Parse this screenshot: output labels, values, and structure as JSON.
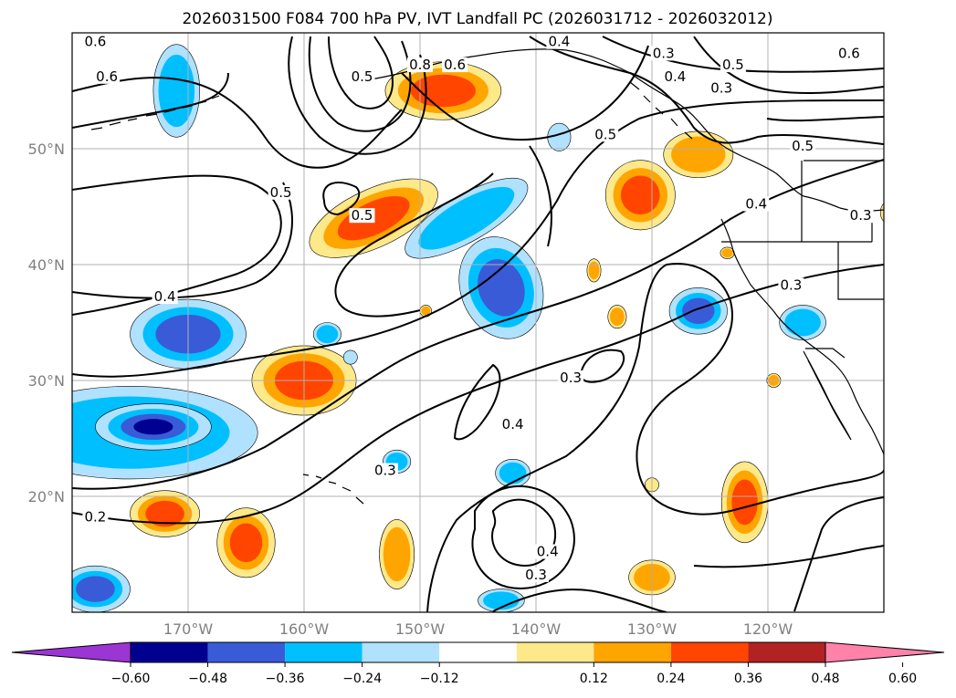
{
  "title": "2026031500 F084 700 hPa PV, IVT Landfall PC (2026031712 - 2026032012)",
  "map": {
    "lon_range": [
      -180,
      -110
    ],
    "lat_range": [
      10,
      60
    ],
    "lon_ticks": [
      {
        "lon": -170,
        "label": "170°W"
      },
      {
        "lon": -160,
        "label": "160°W"
      },
      {
        "lon": -150,
        "label": "150°W"
      },
      {
        "lon": -140,
        "label": "140°W"
      },
      {
        "lon": -130,
        "label": "130°W"
      },
      {
        "lon": -120,
        "label": "120°W"
      }
    ],
    "lat_ticks": [
      {
        "lat": 20,
        "label": "20°N"
      },
      {
        "lat": 30,
        "label": "30°N"
      },
      {
        "lat": 40,
        "label": "40°N"
      },
      {
        "lat": 50,
        "label": "50°N"
      }
    ],
    "grid": true,
    "background_color": "#ffffff",
    "contour_color": "#000000",
    "contour_labels": [
      {
        "text": "0.6",
        "lon": -178,
        "lat": 59
      },
      {
        "text": "0.6",
        "lon": -177,
        "lat": 56
      },
      {
        "text": "0.5",
        "lon": -155,
        "lat": 56
      },
      {
        "text": "0.8",
        "lon": -150,
        "lat": 57
      },
      {
        "text": "0.6",
        "lon": -147,
        "lat": 57
      },
      {
        "text": "0.4",
        "lon": -138,
        "lat": 59
      },
      {
        "text": "0.3",
        "lon": -129,
        "lat": 58
      },
      {
        "text": "0.5",
        "lon": -123,
        "lat": 57
      },
      {
        "text": "0.4",
        "lon": -128,
        "lat": 56
      },
      {
        "text": "0.3",
        "lon": -124,
        "lat": 55
      },
      {
        "text": "0.6",
        "lon": -113,
        "lat": 58
      },
      {
        "text": "0.5",
        "lon": -134,
        "lat": 51
      },
      {
        "text": "0.5",
        "lon": -117,
        "lat": 50
      },
      {
        "text": "0.5",
        "lon": -162,
        "lat": 46
      },
      {
        "text": "0.5",
        "lon": -155,
        "lat": 44
      },
      {
        "text": "0.4",
        "lon": -121,
        "lat": 45
      },
      {
        "text": "0.3",
        "lon": -112,
        "lat": 44
      },
      {
        "text": "0.3",
        "lon": -118,
        "lat": 38
      },
      {
        "text": "0.4",
        "lon": -172,
        "lat": 37
      },
      {
        "text": "0.3",
        "lon": -137,
        "lat": 30
      },
      {
        "text": "0.4",
        "lon": -142,
        "lat": 26
      },
      {
        "text": "0.3",
        "lon": -153,
        "lat": 22
      },
      {
        "text": "0.2",
        "lon": -178,
        "lat": 18
      },
      {
        "text": "0.4",
        "lon": -139,
        "lat": 15
      },
      {
        "text": "0.3",
        "lon": -140,
        "lat": 13
      }
    ]
  },
  "colorbar": {
    "ticks": [
      "−0.60",
      "−0.48",
      "−0.36",
      "−0.24",
      "−0.12",
      "0.12",
      "0.24",
      "0.36",
      "0.48",
      "0.60"
    ],
    "bins": [
      {
        "color": "#9b35d3",
        "role": "under"
      },
      {
        "color": "#000090"
      },
      {
        "color": "#3a5bd8"
      },
      {
        "color": "#00bfff"
      },
      {
        "color": "#b0e2ff"
      },
      {
        "color": "#ffffff"
      },
      {
        "color": "#fee98a"
      },
      {
        "color": "#ffa500"
      },
      {
        "color": "#ff4500"
      },
      {
        "color": "#b22222"
      },
      {
        "color": "#ff82ab",
        "role": "over"
      }
    ]
  },
  "blobs": [
    {
      "lon": -175,
      "lat": 25.5,
      "rx": 11,
      "ry": 4,
      "lv": -2
    },
    {
      "lon": -173,
      "lat": 26,
      "rx": 5,
      "ry": 2,
      "lv": -4
    },
    {
      "lon": -170,
      "lat": 34,
      "rx": 5,
      "ry": 3,
      "lv": -3
    },
    {
      "lon": -178,
      "lat": 12,
      "rx": 3,
      "ry": 2,
      "lv": -3
    },
    {
      "lon": -160,
      "lat": 30,
      "rx": 4.5,
      "ry": 3,
      "lv": 3
    },
    {
      "lon": -172,
      "lat": 18.5,
      "rx": 3,
      "ry": 2,
      "lv": 3
    },
    {
      "lon": -165,
      "lat": 16,
      "rx": 2.5,
      "ry": 3,
      "lv": 3
    },
    {
      "lon": -152,
      "lat": 15,
      "rx": 1.5,
      "ry": 3,
      "lv": 2
    },
    {
      "lon": -154,
      "lat": 44,
      "rx": 6,
      "ry": 2.5,
      "lv": 3,
      "rot": -25
    },
    {
      "lon": -146,
      "lat": 44,
      "rx": 6,
      "ry": 2,
      "lv": -2,
      "rot": -30
    },
    {
      "lon": -143,
      "lat": 38,
      "rx": 3.5,
      "ry": 4.5,
      "lv": -3,
      "rot": -20
    },
    {
      "lon": -148,
      "lat": 55,
      "rx": 5,
      "ry": 2.5,
      "lv": 3
    },
    {
      "lon": -171,
      "lat": 55,
      "rx": 2,
      "ry": 4,
      "lv": -2
    },
    {
      "lon": -131,
      "lat": 46,
      "rx": 3,
      "ry": 3,
      "lv": 3
    },
    {
      "lon": -126,
      "lat": 49.5,
      "rx": 3,
      "ry": 2,
      "lv": 2
    },
    {
      "lon": -126,
      "lat": 36,
      "rx": 2.5,
      "ry": 2,
      "lv": -3
    },
    {
      "lon": -117,
      "lat": 35,
      "rx": 2,
      "ry": 1.5,
      "lv": -2
    },
    {
      "lon": -122,
      "lat": 19.5,
      "rx": 2,
      "ry": 3.5,
      "lv": 3
    },
    {
      "lon": -142,
      "lat": 22,
      "rx": 1.5,
      "ry": 1.2,
      "lv": -2
    },
    {
      "lon": -130,
      "lat": 13,
      "rx": 2,
      "ry": 1.5,
      "lv": 2
    },
    {
      "lon": -158,
      "lat": 34,
      "rx": 1.2,
      "ry": 1,
      "lv": -2
    },
    {
      "lon": -152,
      "lat": 23,
      "rx": 1.2,
      "ry": 1,
      "lv": -2
    },
    {
      "lon": -156,
      "lat": 32,
      "rx": 0.6,
      "ry": 0.6,
      "lv": -1
    },
    {
      "lon": -135,
      "lat": 39.5,
      "rx": 0.6,
      "ry": 1,
      "lv": 2
    },
    {
      "lon": -133,
      "lat": 35.5,
      "rx": 0.8,
      "ry": 1,
      "lv": 2
    },
    {
      "lon": -149.5,
      "lat": 36,
      "rx": 0.5,
      "ry": 0.5,
      "lv": 2
    },
    {
      "lon": -138,
      "lat": 51,
      "rx": 1,
      "ry": 1.2,
      "lv": -1
    },
    {
      "lon": -143,
      "lat": 11,
      "rx": 2,
      "ry": 1,
      "lv": -2
    },
    {
      "lon": -130,
      "lat": 21,
      "rx": 0.6,
      "ry": 0.6,
      "lv": 1
    },
    {
      "lon": -119.5,
      "lat": 30,
      "rx": 0.6,
      "ry": 0.6,
      "lv": 2
    },
    {
      "lon": -123.5,
      "lat": 41,
      "rx": 0.6,
      "ry": 0.5,
      "lv": 2
    },
    {
      "lon": -109.5,
      "lat": 44.5,
      "rx": 0.8,
      "ry": 1,
      "lv": 1
    }
  ]
}
